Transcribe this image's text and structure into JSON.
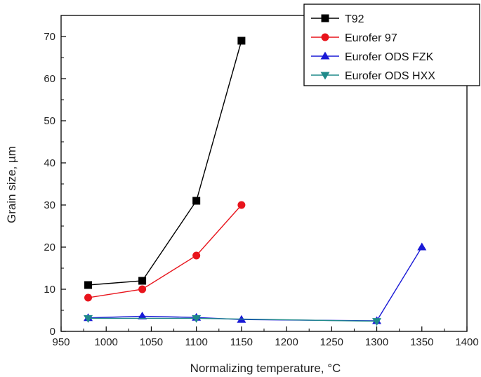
{
  "chart_data": {
    "type": "line",
    "xlabel": "Normalizing temperature, °C",
    "ylabel": "Grain size, µm",
    "xlim": [
      950,
      1400
    ],
    "ylim": [
      0,
      75
    ],
    "xticks": [
      950,
      1000,
      1050,
      1100,
      1150,
      1200,
      1250,
      1300,
      1350,
      1400
    ],
    "yticks": [
      0,
      10,
      20,
      30,
      40,
      50,
      60,
      70
    ],
    "grid": false,
    "legend_position": "top-right",
    "series": [
      {
        "name": "T92",
        "color": "#000000",
        "marker": "square",
        "x": [
          980,
          1040,
          1100,
          1150
        ],
        "y": [
          11,
          12,
          31,
          69
        ]
      },
      {
        "name": "Eurofer 97",
        "color": "#e8141c",
        "marker": "circle",
        "x": [
          980,
          1040,
          1100,
          1150
        ],
        "y": [
          8,
          10,
          18,
          30
        ]
      },
      {
        "name": "Eurofer ODS FZK",
        "color": "#1a1ad6",
        "marker": "triangle-up",
        "x": [
          980,
          1040,
          1100,
          1150,
          1300,
          1350
        ],
        "y": [
          3.2,
          3.6,
          3.3,
          2.8,
          2.5,
          20
        ]
      },
      {
        "name": "Eurofer ODS HXX",
        "color": "#1f8a8a",
        "marker": "triangle-down",
        "x": [
          980,
          1100,
          1300
        ],
        "y": [
          3.1,
          3.1,
          2.4
        ]
      }
    ]
  }
}
